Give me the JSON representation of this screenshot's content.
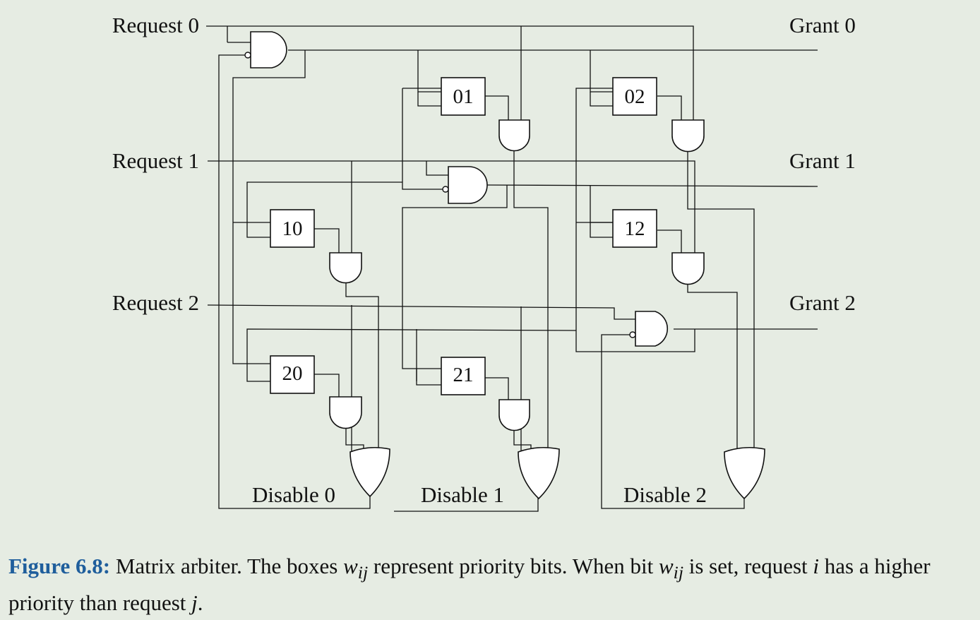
{
  "inputs": [
    "Request 0",
    "Request 1",
    "Request 2"
  ],
  "outputs": [
    "Grant 0",
    "Grant 1",
    "Grant 2"
  ],
  "disables": [
    "Disable 0",
    "Disable 1",
    "Disable 2"
  ],
  "priority_bits": [
    "01",
    "02",
    "10",
    "12",
    "20",
    "21"
  ],
  "caption": {
    "number": "Figure 6.8:",
    "text_1": "Matrix arbiter. The boxes",
    "w": "w",
    "ij": "ij",
    "text_2": "represent priority bits. When bit",
    "text_3": "is set, request",
    "i": "i",
    "text_4": "has a higher priority than request",
    "j": "j",
    "text_5": "."
  }
}
